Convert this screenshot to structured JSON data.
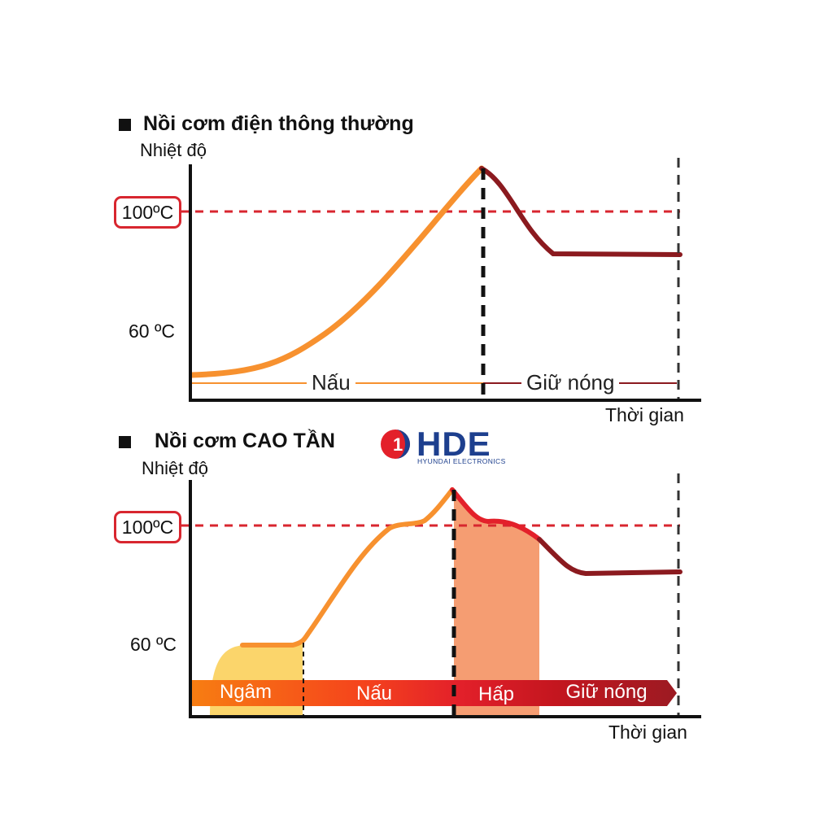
{
  "conventional": {
    "title": "Nồi cơm điện thông thường",
    "y_label": "Nhiệt độ",
    "x_label": "Thời gian",
    "temp_high": "100ºC",
    "temp_low": "60 ºC",
    "phase_cook": "Nấu",
    "phase_keep_warm": "Giữ nóng"
  },
  "high_frequency": {
    "title": "Nồi cơm CAO TẦN",
    "y_label": "Nhiệt độ",
    "x_label": "Thời gian",
    "temp_high": "100ºC",
    "temp_low": "60 ºC",
    "band_soak": "Ngâm",
    "band_cook": "Nấu",
    "band_steam": "Hấp",
    "band_keep_warm": "Giữ nóng"
  },
  "logo": {
    "brand": "HDE",
    "subtitle": "HYUNDAI ELECTRONICS",
    "mark": "1"
  },
  "colors": {
    "cook_curve": "#f7912f",
    "keep_warm_curve": "#8b1a1f",
    "steam_curve": "#e3202a",
    "reference_line": "#d8262f",
    "soak_fill": "#fbd56b",
    "steam_fill": "#f59d72",
    "brand_blue": "#1d3f8e",
    "brand_red": "#e3202a"
  }
}
